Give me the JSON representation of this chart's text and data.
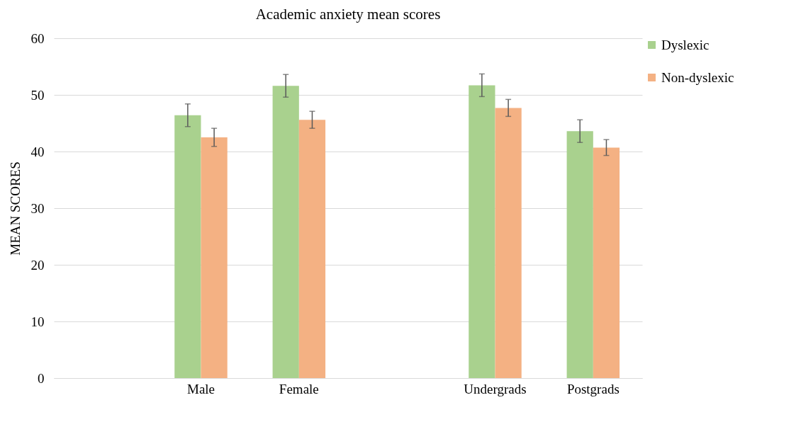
{
  "chart_data": {
    "type": "bar",
    "title": "Academic anxiety mean scores",
    "ylabel": "MEAN SCORES",
    "categories": [
      null,
      "Male",
      "Female",
      null,
      "Undergrads",
      "Postgrads"
    ],
    "series": [
      {
        "name": "Dyslexic",
        "color": "#a9d18e",
        "values": [
          null,
          46.4,
          51.6,
          null,
          51.7,
          43.6
        ],
        "errors": [
          null,
          2,
          2,
          null,
          2,
          2
        ]
      },
      {
        "name": "Non-dyslexic",
        "color": "#f4b183",
        "values": [
          null,
          42.5,
          45.6,
          null,
          47.7,
          40.7
        ],
        "errors": [
          null,
          1.6,
          1.5,
          null,
          1.5,
          1.4
        ]
      }
    ],
    "ylim": [
      0,
      60
    ],
    "yticks": [
      0,
      10,
      20,
      30,
      40,
      50,
      60
    ],
    "grid": "y",
    "legend": "right"
  }
}
